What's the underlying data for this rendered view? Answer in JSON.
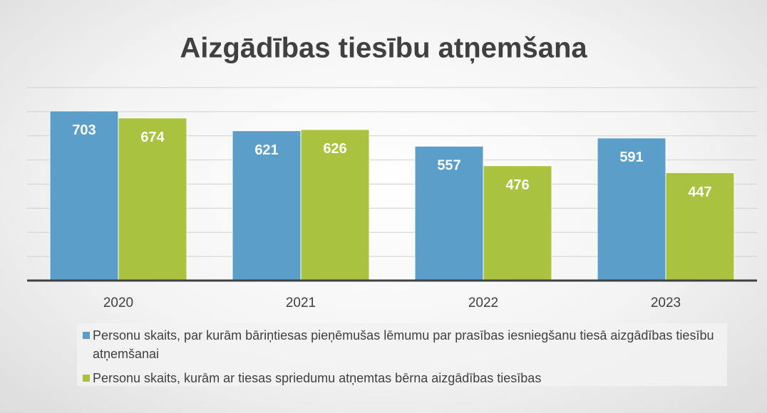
{
  "chart_data": {
    "type": "bar",
    "title": "Aizgādības tiesību atņemšana",
    "categories": [
      "2020",
      "2021",
      "2022",
      "2023"
    ],
    "series": [
      {
        "name": "Personu skaits, par kurām bāriņtiesas pieņēmušas lēmumu par prasības iesniegšanu tiesā aizgādības tiesību atņemšanai",
        "color": "#5b9ec9",
        "values": [
          703,
          621,
          557,
          591
        ]
      },
      {
        "name": "Personu skaits, kurām ar tiesas spriedumu atņemtas bērna aizgādības tiesības",
        "color": "#a9c23f",
        "values": [
          674,
          626,
          476,
          447
        ]
      }
    ],
    "ylim": [
      0,
      800
    ],
    "yticks": [
      0,
      100,
      200,
      300,
      400,
      500,
      600,
      700,
      800
    ],
    "grid": true
  }
}
